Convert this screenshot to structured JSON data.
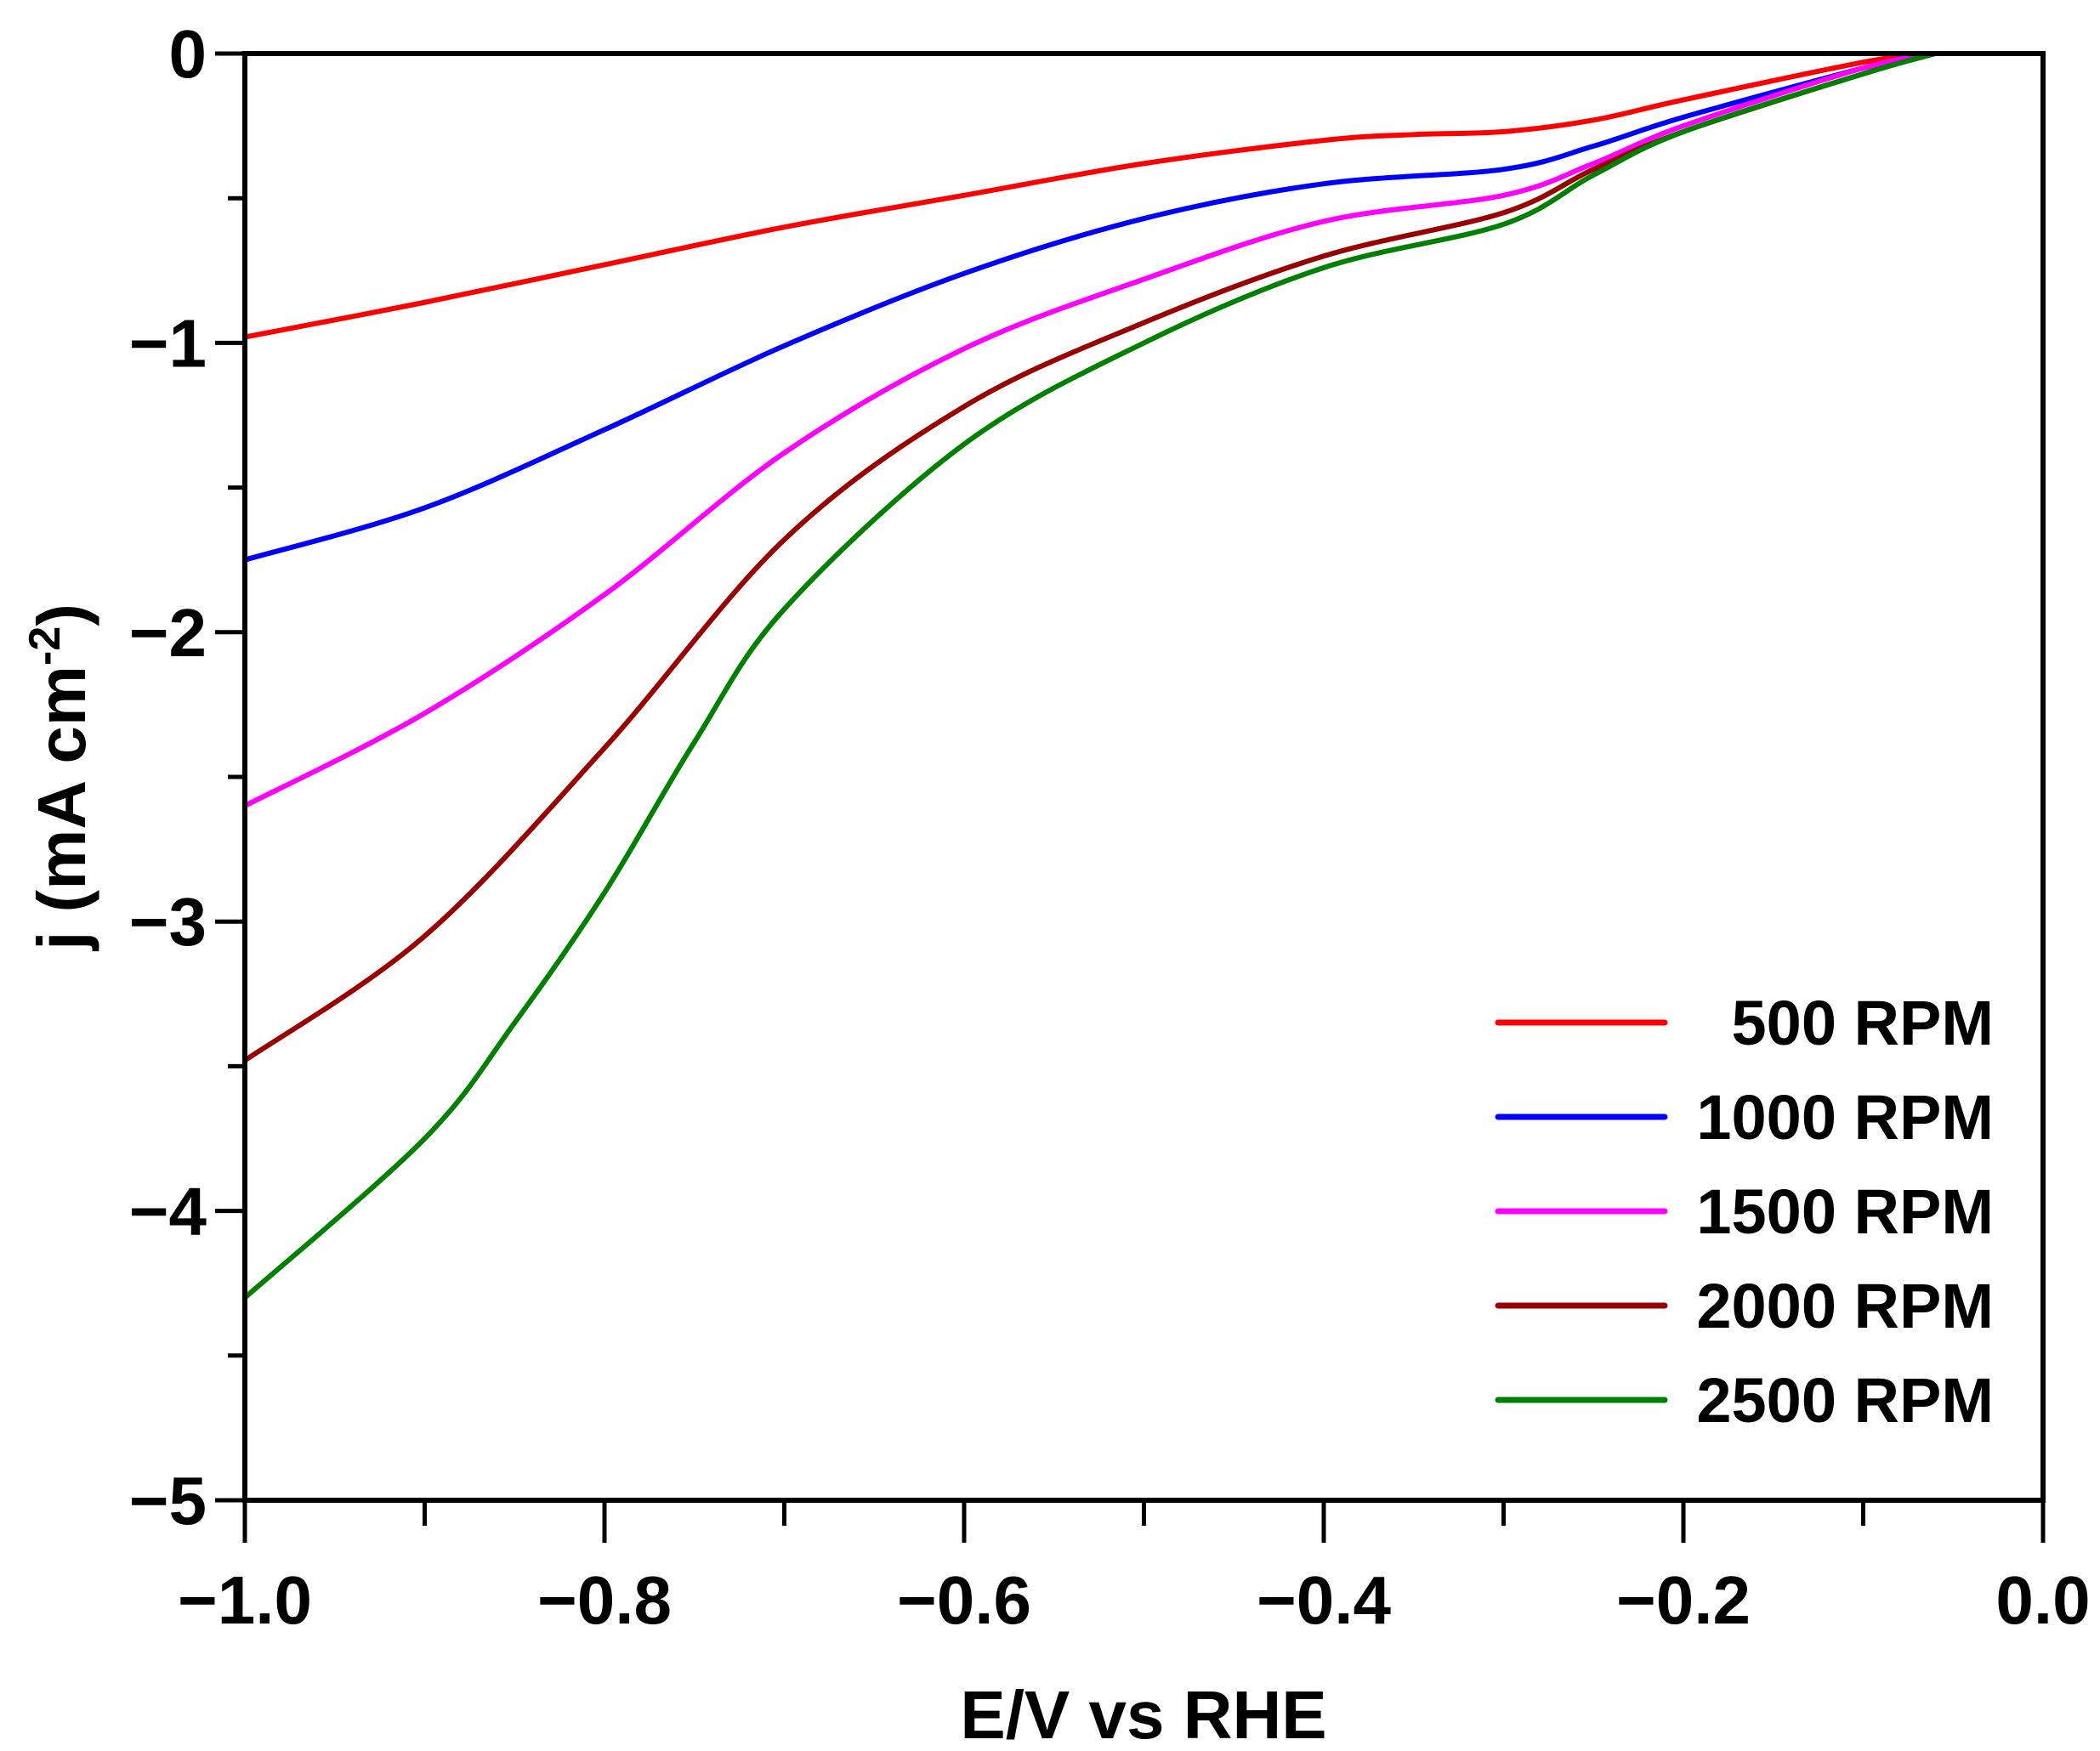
{
  "chart_data": {
    "type": "line",
    "title": "",
    "xlabel": "E/V vs RHE",
    "ylabel": "j (mA cm",
    "ylabel_sup": "-2",
    "ylabel_close": ")",
    "xlim": [
      -1.0,
      0.0
    ],
    "ylim": [
      -5,
      0
    ],
    "xticks": [
      -1.0,
      -0.8,
      -0.6,
      -0.4,
      -0.2,
      0.0
    ],
    "xtick_labels": [
      "−1.0",
      "−0.8",
      "−0.6",
      "−0.4",
      "−0.2",
      "0.0"
    ],
    "yticks": [
      0,
      -1,
      -2,
      -3,
      -4,
      -5
    ],
    "ytick_labels": [
      "0",
      "−1",
      "−2",
      "−3",
      "−4",
      "−5"
    ],
    "grid": false,
    "legend_position": "bottom-right",
    "series": [
      {
        "name": "500 RPM",
        "color": "#ff0000",
        "x": [
          -1.0,
          -0.9,
          -0.8,
          -0.7,
          -0.6,
          -0.5,
          -0.4,
          -0.35,
          -0.3,
          -0.25,
          -0.2,
          -0.1,
          -0.065
        ],
        "y": [
          -0.98,
          -0.86,
          -0.73,
          -0.6,
          -0.49,
          -0.38,
          -0.3,
          -0.28,
          -0.27,
          -0.23,
          -0.16,
          -0.03,
          0
        ]
      },
      {
        "name": "1000 RPM",
        "color": "#0000ff",
        "x": [
          -1.0,
          -0.9,
          -0.8,
          -0.7,
          -0.6,
          -0.5,
          -0.4,
          -0.3,
          -0.25,
          -0.2,
          -0.1,
          -0.065
        ],
        "y": [
          -1.75,
          -1.57,
          -1.3,
          -1.01,
          -0.76,
          -0.57,
          -0.45,
          -0.4,
          -0.32,
          -0.22,
          -0.05,
          0
        ]
      },
      {
        "name": "1500 RPM",
        "color": "#ff00ff",
        "x": [
          -1.0,
          -0.9,
          -0.8,
          -0.7,
          -0.6,
          -0.5,
          -0.4,
          -0.3,
          -0.25,
          -0.2,
          -0.1,
          -0.06
        ],
        "y": [
          -2.6,
          -2.28,
          -1.87,
          -1.38,
          -1.02,
          -0.78,
          -0.58,
          -0.49,
          -0.38,
          -0.25,
          -0.05,
          0
        ]
      },
      {
        "name": "2000 RPM",
        "color": "#990000",
        "x": [
          -1.0,
          -0.9,
          -0.8,
          -0.7,
          -0.6,
          -0.5,
          -0.4,
          -0.3,
          -0.25,
          -0.2,
          -0.1,
          -0.06
        ],
        "y": [
          -3.48,
          -3.05,
          -2.4,
          -1.68,
          -1.22,
          -0.93,
          -0.7,
          -0.55,
          -0.4,
          -0.27,
          -0.07,
          0
        ]
      },
      {
        "name": "2500 RPM",
        "color": "#008000",
        "x": [
          -1.0,
          -0.9,
          -0.85,
          -0.8,
          -0.75,
          -0.7,
          -0.6,
          -0.5,
          -0.4,
          -0.3,
          -0.25,
          -0.2,
          -0.1,
          -0.06
        ],
        "y": [
          -4.3,
          -3.75,
          -3.35,
          -2.9,
          -2.38,
          -1.92,
          -1.35,
          -1.0,
          -0.74,
          -0.59,
          -0.42,
          -0.27,
          -0.07,
          0
        ]
      }
    ]
  }
}
